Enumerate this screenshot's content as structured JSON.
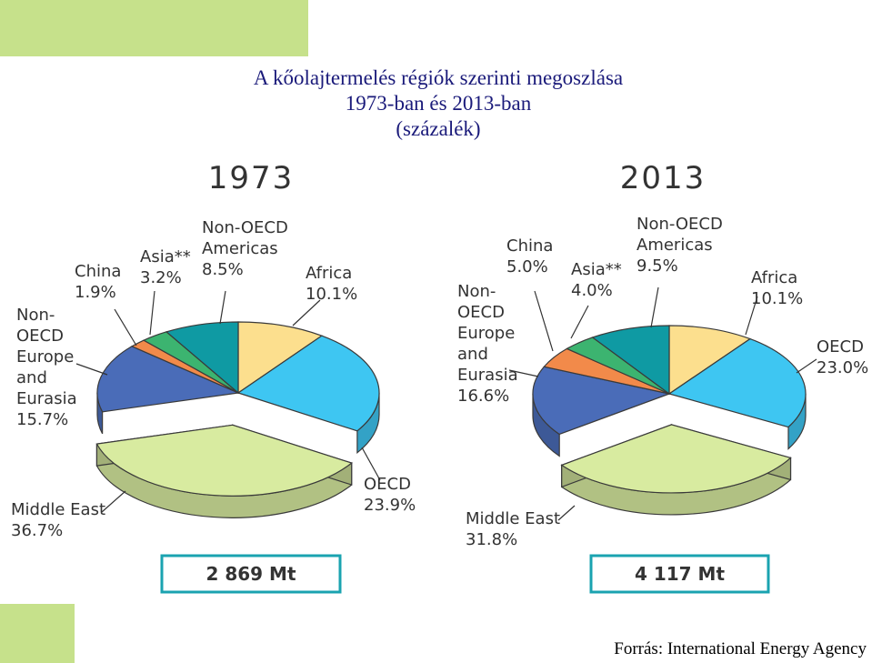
{
  "title_lines": [
    "A kőolajtermelés régiók szerinti megoszlása",
    "1973-ban és 2013-ban",
    "(százalék)"
  ],
  "source": "Forrás: International Energy Agency",
  "colors": {
    "Africa": "#fcdf8e",
    "OECD": "#3ec6f2",
    "Middle East": "#d8eba0",
    "Non-OECD Europe and Eurasia": "#4a6cb8",
    "China": "#f28a4a",
    "Asia**": "#3cb470",
    "Non-OECD Americas": "#0f9aa3"
  },
  "chart_data": [
    {
      "type": "pie",
      "title": "1973",
      "total": "2 869 Mt",
      "slices": [
        {
          "name": "Africa",
          "value": 10.1,
          "label_lines": [
            "Africa",
            "10.1%"
          ]
        },
        {
          "name": "OECD",
          "value": 23.9,
          "label_lines": [
            "OECD",
            "23.9%"
          ]
        },
        {
          "name": "Middle East",
          "value": 36.7,
          "label_lines": [
            "Middle East",
            "36.7%"
          ]
        },
        {
          "name": "Non-OECD Europe and Eurasia",
          "value": 15.7,
          "label_lines": [
            "Non-",
            "OECD",
            "Europe",
            "and",
            "Eurasia",
            "15.7%"
          ]
        },
        {
          "name": "China",
          "value": 1.9,
          "label_lines": [
            "China",
            "1.9%"
          ]
        },
        {
          "name": "Asia**",
          "value": 3.2,
          "label_lines": [
            "Asia**",
            "3.2%"
          ]
        },
        {
          "name": "Non-OECD Americas",
          "value": 8.5,
          "label_lines": [
            "Non-OECD",
            "Americas",
            "8.5%"
          ]
        }
      ]
    },
    {
      "type": "pie",
      "title": "2013",
      "total": "4 117 Mt",
      "slices": [
        {
          "name": "Africa",
          "value": 10.1,
          "label_lines": [
            "Africa",
            "10.1%"
          ]
        },
        {
          "name": "OECD",
          "value": 23.0,
          "label_lines": [
            "OECD",
            "23.0%"
          ]
        },
        {
          "name": "Middle East",
          "value": 31.8,
          "label_lines": [
            "Middle East",
            "31.8%"
          ]
        },
        {
          "name": "Non-OECD Europe and Eurasia",
          "value": 16.6,
          "label_lines": [
            "Non-",
            "OECD",
            "Europe",
            "and",
            "Eurasia",
            "16.6%"
          ]
        },
        {
          "name": "China",
          "value": 5.0,
          "label_lines": [
            "China",
            "5.0%"
          ]
        },
        {
          "name": "Asia**",
          "value": 4.0,
          "label_lines": [
            "Asia**",
            "4.0%"
          ]
        },
        {
          "name": "Non-OECD Americas",
          "value": 9.5,
          "label_lines": [
            "Non-OECD",
            "Americas",
            "9.5%"
          ]
        }
      ]
    }
  ]
}
